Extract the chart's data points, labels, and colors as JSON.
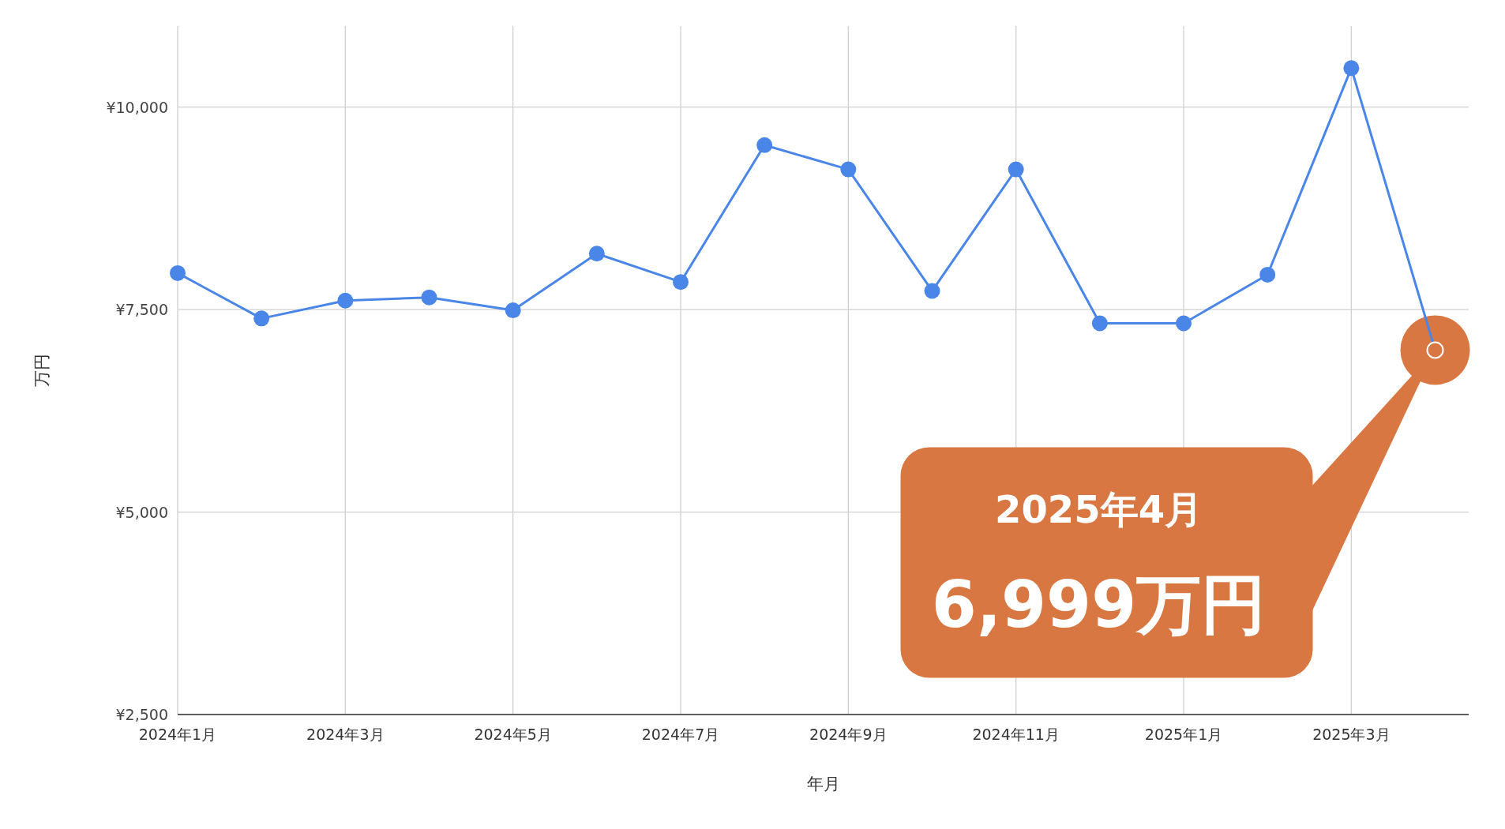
{
  "chart_data": {
    "type": "line",
    "categories": [
      "2024年1月",
      null,
      "2024年3月",
      null,
      "2024年5月",
      null,
      "2024年7月",
      null,
      "2024年9月",
      null,
      "2024年11月",
      null,
      "2025年1月",
      null,
      "2025年3月",
      null
    ],
    "series": [
      {
        "color": "#4a86e8",
        "values": [
          7950,
          7390,
          7610,
          7650,
          7490,
          8190,
          7840,
          9530,
          9230,
          7730,
          9230,
          7330,
          7330,
          7930,
          10480,
          6999
        ],
        "colors": [
          "#4a86e8",
          "#4a86e8",
          "#4a86e8",
          "#4a86e8",
          "#4a86e8",
          "#4a86e8",
          "#4a86e8",
          "#4a86e8",
          "#4a86e8",
          "#4a86e8",
          "#4a86e8",
          "#4a86e8",
          "#4a86e8",
          "#4a86e8",
          "#4a86e8",
          "#d97742"
        ]
      }
    ],
    "ylim": [
      2500,
      11000
    ],
    "yticks": [
      {
        "value": 2500,
        "label": "¥2,500"
      },
      {
        "value": 5000,
        "label": "¥5,000"
      },
      {
        "value": 7500,
        "label": "¥7,500"
      },
      {
        "value": 10000,
        "label": "¥10,000"
      }
    ],
    "xlabel": "年月",
    "ylabel": "万円",
    "grid": true,
    "marker": "circle",
    "annotations": [
      "2025年4月",
      "6,999万円"
    ]
  }
}
